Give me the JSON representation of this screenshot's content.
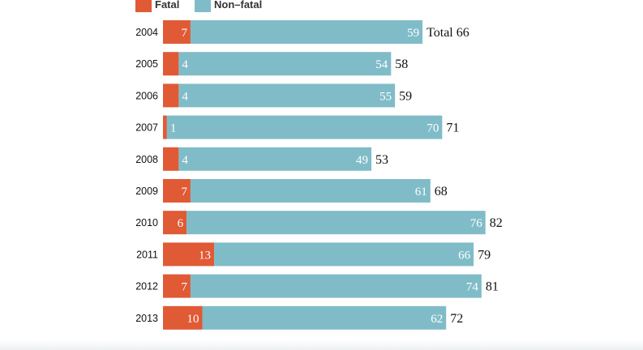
{
  "legend": [
    {
      "label": "Fatal",
      "color": "#e05a35"
    },
    {
      "label": "Non–fatal",
      "color": "#80bcc8"
    }
  ],
  "total_prefix": "Total",
  "chart_data": {
    "type": "bar",
    "orientation": "horizontal",
    "stacked": true,
    "categories": [
      "2004",
      "2005",
      "2006",
      "2007",
      "2008",
      "2009",
      "2010",
      "2011",
      "2012",
      "2013"
    ],
    "series": [
      {
        "name": "Fatal",
        "color": "#e05a35",
        "values": [
          7,
          4,
          4,
          1,
          4,
          7,
          6,
          13,
          7,
          10
        ]
      },
      {
        "name": "Non–fatal",
        "color": "#80bcc8",
        "values": [
          59,
          54,
          55,
          70,
          49,
          61,
          76,
          66,
          74,
          62
        ]
      }
    ],
    "totals": [
      66,
      58,
      59,
      71,
      53,
      68,
      82,
      79,
      81,
      72
    ],
    "legend_position": "top-left",
    "grid": false
  }
}
